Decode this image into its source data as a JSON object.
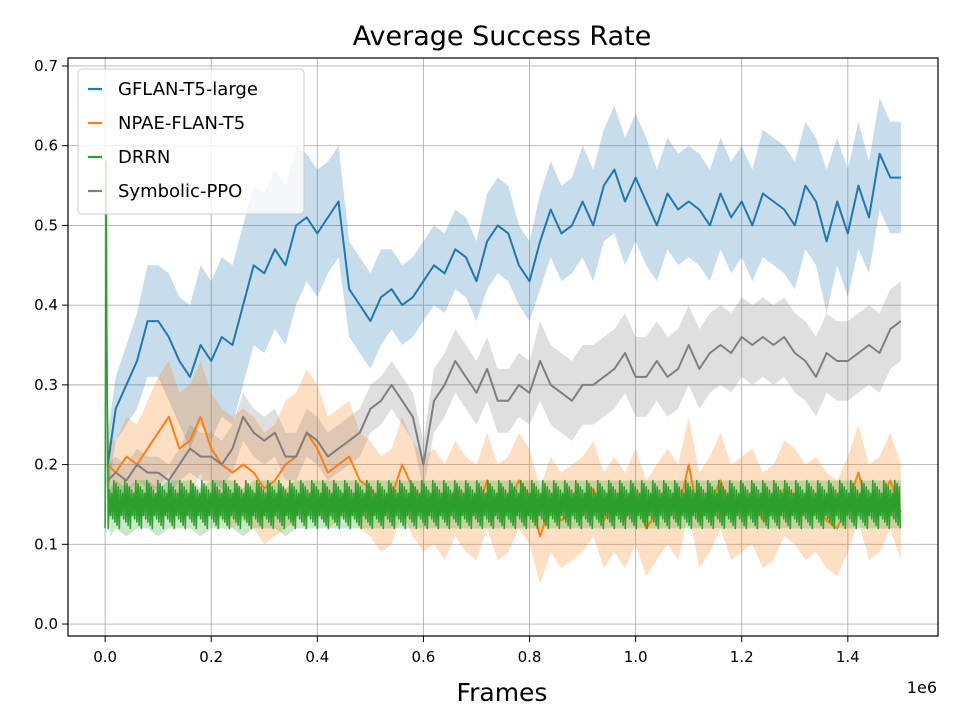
{
  "chart_data": {
    "type": "line",
    "title": "Average Success Rate",
    "xlabel": "Frames",
    "ylabel": "",
    "x_offset_label": "1e6",
    "xlim": [
      -0.07,
      1.57
    ],
    "ylim": [
      -0.015,
      0.71
    ],
    "x_ticks": [
      0.0,
      0.2,
      0.4,
      0.6,
      0.8,
      1.0,
      1.2,
      1.4
    ],
    "x_tick_labels": [
      "0.0",
      "0.2",
      "0.4",
      "0.6",
      "0.8",
      "1.0",
      "1.2",
      "1.4"
    ],
    "y_ticks": [
      0.0,
      0.1,
      0.2,
      0.3,
      0.4,
      0.5,
      0.6,
      0.7
    ],
    "y_tick_labels": [
      "0.0",
      "0.1",
      "0.2",
      "0.3",
      "0.4",
      "0.5",
      "0.6",
      "0.7"
    ],
    "grid": true,
    "legend_position": "top-left",
    "series": [
      {
        "name": "GFLAN-T5-large",
        "color": "#1f77b4",
        "x": [
          0.005,
          0.02,
          0.04,
          0.06,
          0.08,
          0.1,
          0.12,
          0.14,
          0.16,
          0.18,
          0.2,
          0.22,
          0.24,
          0.26,
          0.28,
          0.3,
          0.32,
          0.34,
          0.36,
          0.38,
          0.4,
          0.42,
          0.44,
          0.46,
          0.48,
          0.5,
          0.52,
          0.54,
          0.56,
          0.58,
          0.6,
          0.62,
          0.64,
          0.66,
          0.68,
          0.7,
          0.72,
          0.74,
          0.76,
          0.78,
          0.8,
          0.82,
          0.84,
          0.86,
          0.88,
          0.9,
          0.92,
          0.94,
          0.96,
          0.98,
          1.0,
          1.02,
          1.04,
          1.06,
          1.08,
          1.1,
          1.12,
          1.14,
          1.16,
          1.18,
          1.2,
          1.22,
          1.24,
          1.26,
          1.28,
          1.3,
          1.32,
          1.34,
          1.36,
          1.38,
          1.4,
          1.42,
          1.44,
          1.46,
          1.48,
          1.5
        ],
        "values": [
          0.2,
          0.27,
          0.3,
          0.33,
          0.38,
          0.38,
          0.36,
          0.33,
          0.31,
          0.35,
          0.33,
          0.36,
          0.35,
          0.4,
          0.45,
          0.44,
          0.47,
          0.45,
          0.5,
          0.51,
          0.49,
          0.51,
          0.53,
          0.42,
          0.4,
          0.38,
          0.41,
          0.42,
          0.4,
          0.41,
          0.43,
          0.45,
          0.44,
          0.47,
          0.46,
          0.43,
          0.48,
          0.5,
          0.49,
          0.45,
          0.43,
          0.48,
          0.52,
          0.49,
          0.5,
          0.53,
          0.5,
          0.55,
          0.57,
          0.53,
          0.56,
          0.53,
          0.5,
          0.54,
          0.52,
          0.53,
          0.52,
          0.5,
          0.54,
          0.51,
          0.53,
          0.5,
          0.54,
          0.53,
          0.52,
          0.5,
          0.55,
          0.53,
          0.48,
          0.53,
          0.49,
          0.55,
          0.51,
          0.59,
          0.56,
          0.56
        ],
        "band_halfwidth": [
          0.04,
          0.04,
          0.05,
          0.06,
          0.07,
          0.07,
          0.08,
          0.08,
          0.09,
          0.1,
          0.1,
          0.1,
          0.1,
          0.1,
          0.1,
          0.1,
          0.1,
          0.1,
          0.1,
          0.08,
          0.08,
          0.07,
          0.07,
          0.06,
          0.06,
          0.06,
          0.06,
          0.05,
          0.05,
          0.05,
          0.05,
          0.05,
          0.05,
          0.05,
          0.05,
          0.05,
          0.06,
          0.06,
          0.06,
          0.05,
          0.05,
          0.06,
          0.06,
          0.06,
          0.06,
          0.07,
          0.07,
          0.07,
          0.08,
          0.08,
          0.08,
          0.08,
          0.07,
          0.07,
          0.07,
          0.07,
          0.07,
          0.07,
          0.07,
          0.07,
          0.07,
          0.07,
          0.08,
          0.08,
          0.08,
          0.08,
          0.08,
          0.08,
          0.09,
          0.08,
          0.08,
          0.08,
          0.07,
          0.07,
          0.07,
          0.07
        ]
      },
      {
        "name": "NPAE-FLAN-T5",
        "color": "#ff7f0e",
        "x": [
          0.005,
          0.02,
          0.04,
          0.06,
          0.08,
          0.1,
          0.12,
          0.14,
          0.16,
          0.18,
          0.2,
          0.22,
          0.24,
          0.26,
          0.28,
          0.3,
          0.32,
          0.34,
          0.36,
          0.38,
          0.4,
          0.42,
          0.44,
          0.46,
          0.48,
          0.5,
          0.52,
          0.54,
          0.56,
          0.58,
          0.6,
          0.62,
          0.64,
          0.66,
          0.68,
          0.7,
          0.72,
          0.74,
          0.76,
          0.78,
          0.8,
          0.82,
          0.84,
          0.86,
          0.88,
          0.9,
          0.92,
          0.94,
          0.96,
          0.98,
          1.0,
          1.02,
          1.04,
          1.06,
          1.08,
          1.1,
          1.12,
          1.14,
          1.16,
          1.18,
          1.2,
          1.22,
          1.24,
          1.26,
          1.28,
          1.3,
          1.32,
          1.34,
          1.36,
          1.38,
          1.4,
          1.42,
          1.44,
          1.46,
          1.48,
          1.5
        ],
        "values": [
          0.2,
          0.19,
          0.21,
          0.2,
          0.22,
          0.24,
          0.26,
          0.22,
          0.23,
          0.26,
          0.22,
          0.2,
          0.19,
          0.2,
          0.19,
          0.17,
          0.18,
          0.2,
          0.21,
          0.24,
          0.22,
          0.19,
          0.2,
          0.21,
          0.18,
          0.17,
          0.15,
          0.16,
          0.2,
          0.17,
          0.15,
          0.16,
          0.14,
          0.17,
          0.15,
          0.14,
          0.18,
          0.14,
          0.15,
          0.18,
          0.16,
          0.11,
          0.15,
          0.13,
          0.14,
          0.15,
          0.17,
          0.13,
          0.15,
          0.13,
          0.16,
          0.12,
          0.14,
          0.16,
          0.14,
          0.2,
          0.13,
          0.15,
          0.18,
          0.14,
          0.15,
          0.16,
          0.13,
          0.14,
          0.17,
          0.16,
          0.14,
          0.15,
          0.13,
          0.12,
          0.15,
          0.19,
          0.14,
          0.15,
          0.18,
          0.14
        ],
        "band_halfwidth": [
          0.03,
          0.04,
          0.05,
          0.05,
          0.06,
          0.07,
          0.07,
          0.07,
          0.07,
          0.07,
          0.07,
          0.07,
          0.07,
          0.07,
          0.07,
          0.07,
          0.07,
          0.08,
          0.08,
          0.08,
          0.08,
          0.07,
          0.07,
          0.07,
          0.06,
          0.06,
          0.06,
          0.06,
          0.06,
          0.06,
          0.06,
          0.06,
          0.06,
          0.06,
          0.06,
          0.06,
          0.06,
          0.06,
          0.06,
          0.06,
          0.06,
          0.06,
          0.06,
          0.06,
          0.06,
          0.06,
          0.06,
          0.06,
          0.06,
          0.06,
          0.06,
          0.06,
          0.06,
          0.06,
          0.06,
          0.06,
          0.06,
          0.06,
          0.06,
          0.06,
          0.06,
          0.06,
          0.06,
          0.06,
          0.06,
          0.06,
          0.06,
          0.06,
          0.06,
          0.06,
          0.06,
          0.06,
          0.06,
          0.06,
          0.06,
          0.06
        ]
      },
      {
        "name": "DRRN",
        "color": "#2ca02c",
        "x": [
          0.0,
          0.002,
          0.004,
          0.006,
          0.01,
          0.02,
          0.04,
          0.06,
          0.08,
          0.1,
          0.12,
          0.14,
          0.16,
          0.18,
          0.2,
          0.22,
          0.24,
          0.26,
          0.28,
          0.3,
          0.32,
          0.34,
          0.36,
          0.38,
          0.4,
          0.42,
          0.44,
          0.46,
          0.48,
          0.5,
          0.52,
          0.54,
          0.56,
          0.58,
          0.6,
          0.62,
          0.64,
          0.66,
          0.68,
          0.7,
          0.72,
          0.74,
          0.76,
          0.78,
          0.8,
          0.82,
          0.84,
          0.86,
          0.88,
          0.9,
          0.92,
          0.94,
          0.96,
          0.98,
          1.0,
          1.02,
          1.04,
          1.06,
          1.08,
          1.1,
          1.12,
          1.14,
          1.16,
          1.18,
          1.2,
          1.22,
          1.24,
          1.26,
          1.28,
          1.3,
          1.32,
          1.34,
          1.36,
          1.38,
          1.4,
          1.42,
          1.44,
          1.46,
          1.48,
          1.5
        ],
        "values": [
          0.12,
          0.38,
          0.16,
          0.22,
          0.14,
          0.15,
          0.14,
          0.15,
          0.15,
          0.14,
          0.15,
          0.15,
          0.15,
          0.14,
          0.15,
          0.15,
          0.15,
          0.14,
          0.15,
          0.15,
          0.15,
          0.14,
          0.15,
          0.15,
          0.15,
          0.15,
          0.15,
          0.15,
          0.15,
          0.15,
          0.15,
          0.15,
          0.15,
          0.15,
          0.15,
          0.15,
          0.15,
          0.15,
          0.15,
          0.15,
          0.15,
          0.15,
          0.15,
          0.15,
          0.15,
          0.15,
          0.15,
          0.15,
          0.15,
          0.15,
          0.15,
          0.15,
          0.15,
          0.15,
          0.15,
          0.15,
          0.15,
          0.15,
          0.15,
          0.15,
          0.15,
          0.15,
          0.15,
          0.15,
          0.15,
          0.15,
          0.15,
          0.15,
          0.15,
          0.15,
          0.15,
          0.15,
          0.15,
          0.15,
          0.15,
          0.15,
          0.15,
          0.15,
          0.15,
          0.15
        ],
        "oscillation_range": [
          0.12,
          0.18
        ],
        "spike_max": 0.58,
        "band_halfwidth": [
          0.02,
          0.2,
          0.05,
          0.05,
          0.03,
          0.03,
          0.03,
          0.03,
          0.03,
          0.03,
          0.03,
          0.03,
          0.03,
          0.03,
          0.03,
          0.03,
          0.03,
          0.03,
          0.03,
          0.03,
          0.03,
          0.03,
          0.03,
          0.03,
          0.03,
          0.03,
          0.03,
          0.03,
          0.03,
          0.03,
          0.03,
          0.03,
          0.03,
          0.03,
          0.03,
          0.03,
          0.03,
          0.03,
          0.03,
          0.03,
          0.03,
          0.03,
          0.03,
          0.03,
          0.03,
          0.03,
          0.03,
          0.03,
          0.03,
          0.03,
          0.03,
          0.03,
          0.03,
          0.03,
          0.03,
          0.03,
          0.03,
          0.03,
          0.03,
          0.03,
          0.03,
          0.03,
          0.03,
          0.03,
          0.03,
          0.03,
          0.03,
          0.03,
          0.03,
          0.03,
          0.03,
          0.03,
          0.03,
          0.03,
          0.03,
          0.03,
          0.03,
          0.03,
          0.03,
          0.03
        ]
      },
      {
        "name": "Symbolic-PPO",
        "color": "#7f7f7f",
        "x": [
          0.005,
          0.02,
          0.04,
          0.06,
          0.08,
          0.1,
          0.12,
          0.14,
          0.16,
          0.18,
          0.2,
          0.22,
          0.24,
          0.26,
          0.28,
          0.3,
          0.32,
          0.34,
          0.36,
          0.38,
          0.4,
          0.42,
          0.44,
          0.46,
          0.48,
          0.5,
          0.52,
          0.54,
          0.56,
          0.58,
          0.6,
          0.62,
          0.64,
          0.66,
          0.68,
          0.7,
          0.72,
          0.74,
          0.76,
          0.78,
          0.8,
          0.82,
          0.84,
          0.86,
          0.88,
          0.9,
          0.92,
          0.94,
          0.96,
          0.98,
          1.0,
          1.02,
          1.04,
          1.06,
          1.08,
          1.1,
          1.12,
          1.14,
          1.16,
          1.18,
          1.2,
          1.22,
          1.24,
          1.26,
          1.28,
          1.3,
          1.32,
          1.34,
          1.36,
          1.38,
          1.4,
          1.42,
          1.44,
          1.46,
          1.48,
          1.5
        ],
        "values": [
          0.18,
          0.19,
          0.18,
          0.2,
          0.19,
          0.19,
          0.18,
          0.2,
          0.22,
          0.21,
          0.21,
          0.2,
          0.22,
          0.26,
          0.24,
          0.23,
          0.24,
          0.21,
          0.21,
          0.24,
          0.23,
          0.21,
          0.22,
          0.23,
          0.24,
          0.27,
          0.28,
          0.3,
          0.28,
          0.26,
          0.2,
          0.28,
          0.3,
          0.33,
          0.31,
          0.29,
          0.32,
          0.28,
          0.28,
          0.3,
          0.29,
          0.33,
          0.3,
          0.29,
          0.28,
          0.3,
          0.3,
          0.31,
          0.32,
          0.34,
          0.31,
          0.31,
          0.33,
          0.31,
          0.32,
          0.35,
          0.32,
          0.34,
          0.35,
          0.34,
          0.36,
          0.35,
          0.36,
          0.35,
          0.36,
          0.34,
          0.33,
          0.31,
          0.34,
          0.33,
          0.33,
          0.34,
          0.35,
          0.34,
          0.37,
          0.38
        ],
        "band_halfwidth": [
          0.02,
          0.02,
          0.02,
          0.02,
          0.02,
          0.02,
          0.02,
          0.02,
          0.03,
          0.03,
          0.03,
          0.03,
          0.03,
          0.03,
          0.03,
          0.03,
          0.03,
          0.03,
          0.03,
          0.03,
          0.03,
          0.03,
          0.03,
          0.03,
          0.03,
          0.03,
          0.03,
          0.03,
          0.03,
          0.03,
          0.03,
          0.04,
          0.04,
          0.04,
          0.04,
          0.04,
          0.04,
          0.04,
          0.04,
          0.04,
          0.04,
          0.05,
          0.05,
          0.05,
          0.05,
          0.05,
          0.05,
          0.05,
          0.05,
          0.05,
          0.05,
          0.05,
          0.05,
          0.05,
          0.05,
          0.05,
          0.05,
          0.05,
          0.05,
          0.05,
          0.05,
          0.05,
          0.05,
          0.05,
          0.05,
          0.05,
          0.05,
          0.05,
          0.05,
          0.05,
          0.05,
          0.05,
          0.05,
          0.05,
          0.05,
          0.05
        ]
      }
    ]
  }
}
